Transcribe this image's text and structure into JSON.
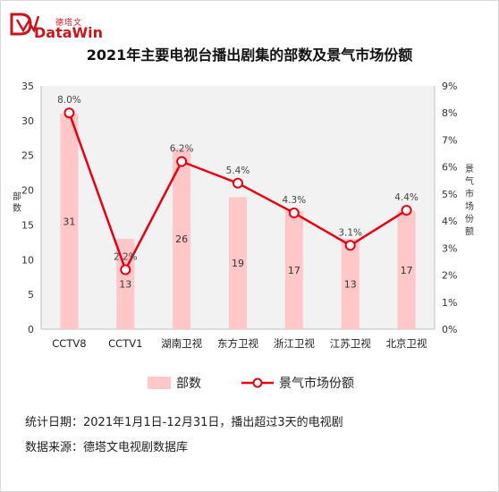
{
  "brand": {
    "cn": "德塔文",
    "en": "DataWin",
    "color": "#c8161d"
  },
  "title": "2021年主要电视台播出剧集的部数及景气市场份额",
  "left_axis_title": "部数",
  "right_axis_title": "景气市场份额",
  "legend": {
    "bar_label": "部数",
    "line_label": "景气市场份额"
  },
  "notes": {
    "stat_date": "统计日期：2021年1月1日-12月31日，播出超过3天的电视剧",
    "source": "数据来源：德塔文电视剧数据库"
  },
  "chart_data": {
    "type": "bar+line",
    "categories": [
      "CCTV8",
      "CCTV1",
      "湖南卫视",
      "东方卫视",
      "浙江卫视",
      "江苏卫视",
      "北京卫视"
    ],
    "series": [
      {
        "name": "部数",
        "type": "bar",
        "axis": "left",
        "values": [
          31,
          13,
          26,
          19,
          17,
          13,
          17
        ],
        "labels": [
          "31",
          "13",
          "26",
          "19",
          "17",
          "13",
          "17"
        ],
        "color": "#ffc7c7"
      },
      {
        "name": "景气市场份额",
        "type": "line",
        "axis": "right",
        "values": [
          8.0,
          2.2,
          6.2,
          5.4,
          4.3,
          3.1,
          4.4
        ],
        "labels": [
          "8.0%",
          "2.2%",
          "6.2%",
          "5.4%",
          "4.3%",
          "3.1%",
          "4.4%"
        ],
        "color": "#e60012"
      }
    ],
    "left_axis": {
      "min": 0,
      "max": 35,
      "ticks": [
        "0",
        "5",
        "10",
        "15",
        "20",
        "25",
        "30",
        "35"
      ]
    },
    "right_axis": {
      "min": 0,
      "max": 9,
      "unit": "%",
      "ticks": [
        "0%",
        "1%",
        "2%",
        "3%",
        "4%",
        "5%",
        "6%",
        "7%",
        "8%",
        "9%"
      ]
    },
    "grid": false,
    "legend_position": "bottom"
  }
}
